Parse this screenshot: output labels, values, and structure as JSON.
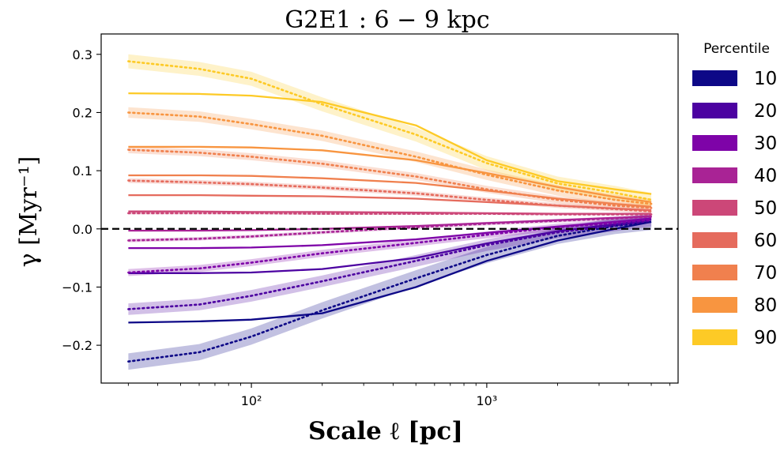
{
  "chart_data": {
    "type": "line",
    "title": "G2E1  :  6 − 9 kpc",
    "xlabel": "Scale ℓ  [pc]",
    "ylabel": "γ [Myr⁻¹]",
    "xscale": "log",
    "xlim": [
      23,
      6500
    ],
    "ylim": [
      -0.265,
      0.335
    ],
    "x_ticks": [
      {
        "value": 100,
        "label": "10²"
      },
      {
        "value": 1000,
        "label": "10³"
      }
    ],
    "y_ticks": [
      {
        "value": 0.3,
        "label": "0.3"
      },
      {
        "value": 0.2,
        "label": "0.2"
      },
      {
        "value": 0.1,
        "label": "0.1"
      },
      {
        "value": 0.0,
        "label": "0.0"
      },
      {
        "value": -0.1,
        "label": "−0.1"
      },
      {
        "value": -0.2,
        "label": "−0.2"
      }
    ],
    "reference_line": {
      "y": 0,
      "style": "dashed",
      "color": "#000000"
    },
    "legend": {
      "title": "Percentile",
      "placement": "outside-right"
    },
    "x": [
      30,
      60,
      100,
      200,
      500,
      1000,
      2000,
      3500,
      5000
    ],
    "series": [
      {
        "name": "10",
        "color": "#0d0887",
        "solid": [
          -0.161,
          -0.159,
          -0.156,
          -0.145,
          -0.1,
          -0.055,
          -0.02,
          0.0,
          0.012
        ],
        "dotted": [
          -0.228,
          -0.212,
          -0.185,
          -0.14,
          -0.085,
          -0.045,
          -0.012,
          0.005,
          0.012
        ],
        "band": 0.014
      },
      {
        "name": "20",
        "color": "#4c02a1",
        "solid": [
          -0.076,
          -0.076,
          -0.075,
          -0.069,
          -0.05,
          -0.025,
          -0.004,
          0.008,
          0.016
        ],
        "dotted": [
          -0.138,
          -0.13,
          -0.115,
          -0.09,
          -0.055,
          -0.028,
          -0.006,
          0.006,
          0.014
        ],
        "band": 0.01
      },
      {
        "name": "30",
        "color": "#7e03a8",
        "solid": [
          -0.033,
          -0.033,
          -0.032,
          -0.028,
          -0.018,
          -0.007,
          0.004,
          0.012,
          0.018
        ],
        "dotted": [
          -0.075,
          -0.068,
          -0.058,
          -0.042,
          -0.024,
          -0.01,
          0.003,
          0.01,
          0.016
        ],
        "band": 0.006
      },
      {
        "name": "40",
        "color": "#a92395",
        "solid": [
          -0.003,
          -0.003,
          -0.002,
          0.0,
          0.005,
          0.01,
          0.015,
          0.019,
          0.022
        ],
        "dotted": [
          -0.02,
          -0.017,
          -0.013,
          -0.006,
          0.003,
          0.009,
          0.014,
          0.018,
          0.021
        ],
        "band": 0.003
      },
      {
        "name": "50",
        "color": "#cc4778",
        "solid": [
          0.03,
          0.03,
          0.029,
          0.029,
          0.028,
          0.027,
          0.026,
          0.026,
          0.026
        ],
        "dotted": [
          0.027,
          0.027,
          0.027,
          0.026,
          0.026,
          0.026,
          0.025,
          0.025,
          0.025
        ],
        "band": 0.002
      },
      {
        "name": "60",
        "color": "#e56b5d",
        "solid": [
          0.058,
          0.058,
          0.057,
          0.056,
          0.052,
          0.046,
          0.04,
          0.035,
          0.032
        ],
        "dotted": [
          0.083,
          0.08,
          0.077,
          0.071,
          0.061,
          0.05,
          0.04,
          0.034,
          0.03
        ],
        "band": 0.004
      },
      {
        "name": "70",
        "color": "#f0804e",
        "solid": [
          0.092,
          0.092,
          0.091,
          0.087,
          0.079,
          0.066,
          0.052,
          0.043,
          0.038
        ],
        "dotted": [
          0.136,
          0.131,
          0.124,
          0.112,
          0.09,
          0.068,
          0.05,
          0.04,
          0.036
        ],
        "band": 0.006
      },
      {
        "name": "80",
        "color": "#f89540",
        "solid": [
          0.141,
          0.141,
          0.14,
          0.135,
          0.118,
          0.096,
          0.072,
          0.055,
          0.046
        ],
        "dotted": [
          0.2,
          0.193,
          0.18,
          0.16,
          0.124,
          0.093,
          0.066,
          0.05,
          0.043
        ],
        "band": 0.009
      },
      {
        "name": "90",
        "color": "#fdca26",
        "solid": [
          0.233,
          0.232,
          0.229,
          0.218,
          0.178,
          0.118,
          0.082,
          0.068,
          0.06
        ],
        "dotted": [
          0.288,
          0.275,
          0.258,
          0.214,
          0.162,
          0.113,
          0.078,
          0.062,
          0.05
        ],
        "band": 0.012
      }
    ]
  }
}
